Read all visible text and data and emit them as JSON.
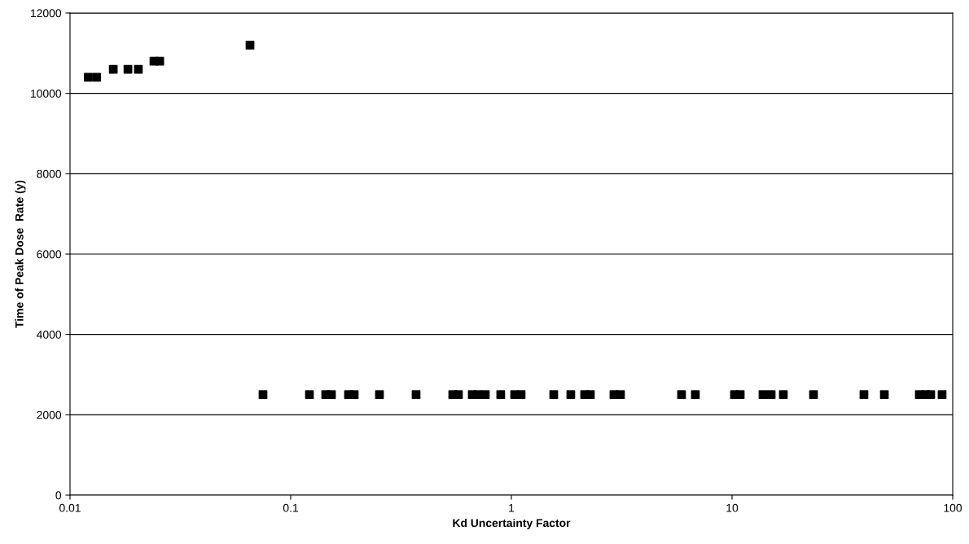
{
  "chart_data": {
    "type": "scatter",
    "xlabel": "Kd Uncertainty Factor",
    "ylabel": "Time of Peak Dose  Rate (y)",
    "log": "x",
    "grid": "y",
    "marker": "square",
    "xlim": [
      0.01,
      100
    ],
    "xticks": [
      0.01,
      0.1,
      1,
      10,
      100
    ],
    "ylim": [
      0,
      12000
    ],
    "yticks": [
      0,
      2000,
      4000,
      6000,
      8000,
      10000,
      12000
    ],
    "series": [
      {
        "color": "#000000",
        "x": [
          0.0121,
          0.0132,
          0.0157,
          0.0183,
          0.0204,
          0.024,
          0.0255,
          0.0654
        ],
        "values": [
          10400,
          10400,
          10600,
          10600,
          10600,
          10800,
          10800,
          11200
        ]
      },
      {
        "color": "#000000",
        "x": [
          0.0749,
          0.1216,
          0.1441,
          0.153,
          0.1828,
          0.194,
          0.2525,
          0.37,
          0.5425,
          0.5757,
          0.665,
          0.706,
          0.762,
          0.895,
          1.035,
          1.107,
          1.556,
          1.859,
          2.148,
          2.28,
          2.916,
          3.122,
          5.905,
          6.82,
          10.26,
          10.89,
          13.81,
          15.04,
          17.08,
          23.4,
          39.6,
          49.0,
          70.6,
          75.5,
          79.5,
          89.5
        ],
        "values": [
          2500,
          2500,
          2500,
          2500,
          2500,
          2500,
          2500,
          2500,
          2500,
          2500,
          2500,
          2500,
          2500,
          2500,
          2500,
          2500,
          2500,
          2500,
          2500,
          2500,
          2500,
          2500,
          2500,
          2500,
          2500,
          2500,
          2500,
          2500,
          2500,
          2500,
          2500,
          2500,
          2500,
          2500,
          2500,
          2500
        ]
      }
    ]
  }
}
